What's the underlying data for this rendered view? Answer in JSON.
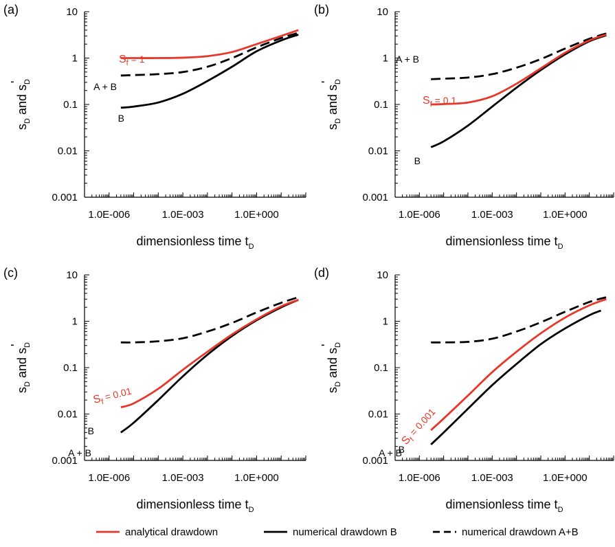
{
  "colors": {
    "analytical": "#e8372a",
    "numerical_B": "#000000",
    "numerical_AB": "#000000",
    "axis": "#000000"
  },
  "axes_text": {
    "ylabel_main": "s",
    "ylabel_sub1": "D",
    "ylabel_mid": " and s",
    "ylabel_sub2": "D",
    "ylabel_prime": "'",
    "xlabel_main": "dimensionless time t",
    "xlabel_sub": "D",
    "xtick_labels": [
      "1.0E-006",
      "1.0E-003",
      "1.0E+000"
    ],
    "ytick_labels": [
      "0.001",
      "0.01",
      "0.1",
      "1",
      "10"
    ]
  },
  "legend": {
    "position": "bottom",
    "items": [
      {
        "label": "analytical drawdown",
        "style": "solid",
        "color": "#e8372a"
      },
      {
        "label": "numerical drawdown B",
        "style": "solid",
        "color": "#000000"
      },
      {
        "label": "numerical drawdown A+B",
        "style": "dashed",
        "color": "#000000"
      }
    ]
  },
  "chart_data": [
    {
      "panel": "(a)",
      "type": "line",
      "x_scale": "log",
      "y_scale": "log",
      "xlim": [
        1e-07,
        100.0
      ],
      "ylim": [
        0.001,
        10
      ],
      "annotations": {
        "sf_main": "S",
        "sf_sub": "f",
        "sf_value": " = 1",
        "ab": "A + B",
        "b": "B"
      },
      "series": [
        {
          "name": "analytical drawdown",
          "style": "solid",
          "color": "#e8372a",
          "x": [
            3e-06,
            1e-05,
            0.0001,
            0.001,
            0.01,
            0.1,
            1,
            10,
            50
          ],
          "y": [
            1.0,
            1.0,
            1.0,
            1.02,
            1.1,
            1.35,
            2.0,
            3.0,
            4.0
          ]
        },
        {
          "name": "numerical drawdown B",
          "style": "solid",
          "color": "#000000",
          "x": [
            3e-06,
            1e-05,
            0.0001,
            0.001,
            0.01,
            0.1,
            1,
            10,
            50
          ],
          "y": [
            0.085,
            0.09,
            0.11,
            0.17,
            0.32,
            0.65,
            1.4,
            2.4,
            3.2
          ]
        },
        {
          "name": "numerical drawdown A+B",
          "style": "dashed",
          "color": "#000000",
          "x": [
            3e-06,
            1e-05,
            0.0001,
            0.001,
            0.01,
            0.1,
            1,
            10,
            50
          ],
          "y": [
            0.42,
            0.43,
            0.45,
            0.5,
            0.65,
            1.0,
            1.7,
            2.7,
            3.5
          ]
        }
      ]
    },
    {
      "panel": "(b)",
      "type": "line",
      "x_scale": "log",
      "y_scale": "log",
      "xlim": [
        1e-07,
        100.0
      ],
      "ylim": [
        0.001,
        10
      ],
      "annotations": {
        "sf_main": "S",
        "sf_sub": "f",
        "sf_value": " = 0.1",
        "ab": "A + B",
        "b": "B"
      },
      "series": [
        {
          "name": "analytical drawdown",
          "style": "solid",
          "color": "#e8372a",
          "x": [
            3e-06,
            1e-05,
            0.0001,
            0.001,
            0.01,
            0.1,
            1,
            10,
            50
          ],
          "y": [
            0.1,
            0.102,
            0.11,
            0.15,
            0.28,
            0.6,
            1.3,
            2.4,
            3.2
          ]
        },
        {
          "name": "numerical drawdown B",
          "style": "solid",
          "color": "#000000",
          "x": [
            3e-06,
            1e-05,
            0.0001,
            0.001,
            0.01,
            0.1,
            1,
            10,
            50
          ],
          "y": [
            0.012,
            0.016,
            0.035,
            0.09,
            0.23,
            0.55,
            1.2,
            2.3,
            3.1
          ]
        },
        {
          "name": "numerical drawdown A+B",
          "style": "dashed",
          "color": "#000000",
          "x": [
            3e-06,
            1e-05,
            0.0001,
            0.001,
            0.01,
            0.1,
            1,
            10,
            50
          ],
          "y": [
            0.35,
            0.36,
            0.38,
            0.45,
            0.62,
            0.95,
            1.6,
            2.6,
            3.4
          ]
        }
      ]
    },
    {
      "panel": "(c)",
      "type": "line",
      "x_scale": "log",
      "y_scale": "log",
      "xlim": [
        1e-07,
        100.0
      ],
      "ylim": [
        0.001,
        10
      ],
      "annotations": {
        "sf_main": "S",
        "sf_sub": "f",
        "sf_value": " = 0.01",
        "ab": "A + B",
        "b": "B"
      },
      "series": [
        {
          "name": "analytical drawdown",
          "style": "solid",
          "color": "#e8372a",
          "x": [
            3e-06,
            1e-05,
            0.0001,
            0.001,
            0.01,
            0.1,
            1,
            10,
            50
          ],
          "y": [
            0.014,
            0.017,
            0.035,
            0.09,
            0.22,
            0.52,
            1.1,
            2.1,
            2.9
          ]
        },
        {
          "name": "numerical drawdown B",
          "style": "solid",
          "color": "#000000",
          "x": [
            3e-06,
            1e-05,
            0.0001,
            0.001,
            0.01,
            0.1,
            1,
            10,
            50
          ],
          "y": [
            0.004,
            0.0065,
            0.02,
            0.065,
            0.19,
            0.48,
            1.05,
            2.0,
            2.9
          ]
        },
        {
          "name": "numerical drawdown A+B",
          "style": "dashed",
          "color": "#000000",
          "x": [
            3e-06,
            1e-05,
            0.0001,
            0.001,
            0.01,
            0.1,
            1,
            10,
            50
          ],
          "y": [
            0.35,
            0.35,
            0.37,
            0.43,
            0.6,
            0.92,
            1.55,
            2.5,
            3.3
          ]
        }
      ]
    },
    {
      "panel": "(d)",
      "type": "line",
      "x_scale": "log",
      "y_scale": "log",
      "xlim": [
        1e-07,
        100.0
      ],
      "ylim": [
        0.001,
        10
      ],
      "annotations": {
        "sf_main": "S",
        "sf_sub": "f",
        "sf_value": " = 0.001",
        "ab": "A + B",
        "b": "B"
      },
      "series": [
        {
          "name": "analytical drawdown",
          "style": "solid",
          "color": "#e8372a",
          "x": [
            3e-06,
            1e-05,
            0.0001,
            0.001,
            0.01,
            0.1,
            1,
            10,
            50
          ],
          "y": [
            0.0045,
            0.008,
            0.025,
            0.08,
            0.22,
            0.55,
            1.2,
            2.2,
            3.0
          ]
        },
        {
          "name": "numerical drawdown B",
          "style": "solid",
          "color": "#000000",
          "x": [
            3e-06,
            1e-05,
            0.0001,
            0.001,
            0.01,
            0.1,
            1,
            10,
            30
          ],
          "y": [
            0.0022,
            0.004,
            0.013,
            0.042,
            0.12,
            0.32,
            0.7,
            1.35,
            1.7
          ]
        },
        {
          "name": "numerical drawdown A+B",
          "style": "dashed",
          "color": "#000000",
          "x": [
            3e-06,
            1e-05,
            0.0001,
            0.001,
            0.01,
            0.1,
            1,
            10,
            50
          ],
          "y": [
            0.35,
            0.35,
            0.36,
            0.42,
            0.6,
            0.95,
            1.6,
            2.6,
            3.3
          ]
        }
      ]
    }
  ]
}
